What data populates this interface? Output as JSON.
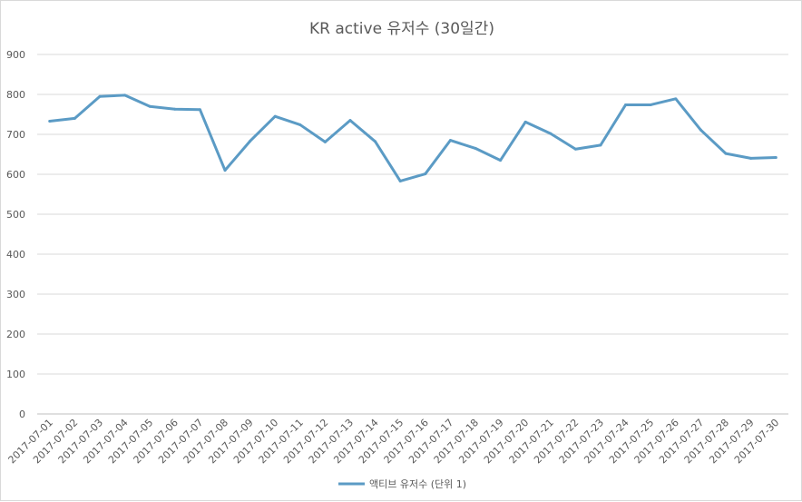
{
  "chart_data": {
    "type": "line",
    "title": "KR active 유저수 (30일간)",
    "xlabel": "",
    "ylabel": "",
    "ylim": [
      0,
      900
    ],
    "yticks": [
      0,
      100,
      200,
      300,
      400,
      500,
      600,
      700,
      800,
      900
    ],
    "grid": true,
    "legend_position": "bottom",
    "categories": [
      "2017-07-01",
      "2017-07-02",
      "2017-07-03",
      "2017-07-04",
      "2017-07-05",
      "2017-07-06",
      "2017-07-07",
      "2017-07-08",
      "2017-07-09",
      "2017-07-10",
      "2017-07-11",
      "2017-07-12",
      "2017-07-13",
      "2017-07-14",
      "2017-07-15",
      "2017-07-16",
      "2017-07-17",
      "2017-07-18",
      "2017-07-19",
      "2017-07-20",
      "2017-07-21",
      "2017-07-22",
      "2017-07-23",
      "2017-07-24",
      "2017-07-25",
      "2017-07-26",
      "2017-07-27",
      "2017-07-28",
      "2017-07-29",
      "2017-07-30"
    ],
    "series": [
      {
        "name": "액티브 유저수 (단위 1)",
        "color": "#5b9bc5",
        "values": [
          733,
          740,
          795,
          798,
          770,
          763,
          762,
          610,
          683,
          745,
          724,
          681,
          735,
          682,
          583,
          601,
          685,
          665,
          635,
          731,
          702,
          663,
          673,
          774,
          774,
          789,
          711,
          652,
          640,
          642
        ]
      }
    ]
  }
}
